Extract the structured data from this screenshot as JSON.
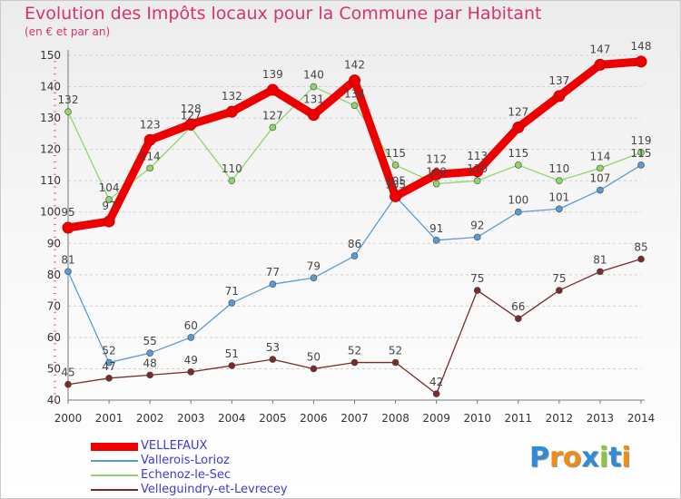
{
  "title": "Evolution des Impôts locaux pour la Commune par Habitant",
  "subtitle": "(en € et par an)",
  "logo": {
    "text": "Proxiti",
    "letters": [
      "P",
      "r",
      "o",
      "x",
      "i",
      "t",
      "i"
    ],
    "colors": [
      "#2f8bd6",
      "#f28c18",
      "#f28c18",
      "#2f8bd6",
      "#8cc63f",
      "#2f8bd6",
      "#f28c18"
    ]
  },
  "chart_data": {
    "type": "line",
    "title": "Evolution des Impôts locaux pour la Commune par Habitant",
    "ylabel": "(en € et par an)",
    "ylim": [
      40,
      150
    ],
    "yticks": [
      40,
      50,
      60,
      70,
      80,
      90,
      100,
      110,
      120,
      130,
      140,
      150
    ],
    "x": [
      "2000",
      "2001",
      "2002",
      "2003",
      "2004",
      "2005",
      "2006",
      "2007",
      "2008",
      "2009",
      "2010",
      "2011",
      "2012",
      "2013",
      "2014"
    ],
    "series": [
      {
        "name": "VELLEFAUX",
        "color": "#ee0000",
        "values": [
          95,
          97,
          123,
          128,
          132,
          139,
          131,
          142,
          105,
          112,
          113,
          127,
          137,
          147,
          148
        ],
        "labels": [
          "95",
          "97",
          "123",
          "128",
          "132",
          "139",
          "131",
          "142",
          "105",
          "112",
          "113",
          "127",
          "137",
          "147",
          "148"
        ]
      },
      {
        "name": "Vallerois-Lorioz",
        "color": "#5b9bd5",
        "values": [
          81,
          52,
          55,
          60,
          71,
          77,
          79,
          86,
          105,
          91,
          92,
          100,
          101,
          107,
          115
        ],
        "labels": [
          "81",
          "52",
          "55",
          "60",
          "71",
          "77",
          "79",
          "86",
          "105",
          "91",
          "92",
          "100",
          "101",
          "107",
          "115"
        ]
      },
      {
        "name": "Echenoz-le-Sec",
        "color": "#8ed66b",
        "values": [
          132,
          104,
          114,
          127,
          110,
          127,
          140,
          134,
          115,
          109,
          110,
          115,
          110,
          114,
          119
        ],
        "labels": [
          "132",
          "104",
          "114",
          "127",
          "110",
          "127",
          "140",
          "134",
          "115",
          "109",
          "110",
          "115",
          "110",
          "114",
          "119"
        ]
      },
      {
        "name": "Velleguindry-et-Levrecey",
        "color": "#7b2a2a",
        "values": [
          45,
          47,
          48,
          49,
          51,
          53,
          50,
          52,
          52,
          42,
          75,
          66,
          75,
          81,
          85
        ],
        "labels": [
          "45",
          "47",
          "48",
          "49",
          "51",
          "53",
          "50",
          "52",
          "52",
          "42",
          "75",
          "66",
          "75",
          "81",
          "85"
        ]
      }
    ],
    "grid": "horizontal dashed",
    "legend": "bottom-left"
  }
}
